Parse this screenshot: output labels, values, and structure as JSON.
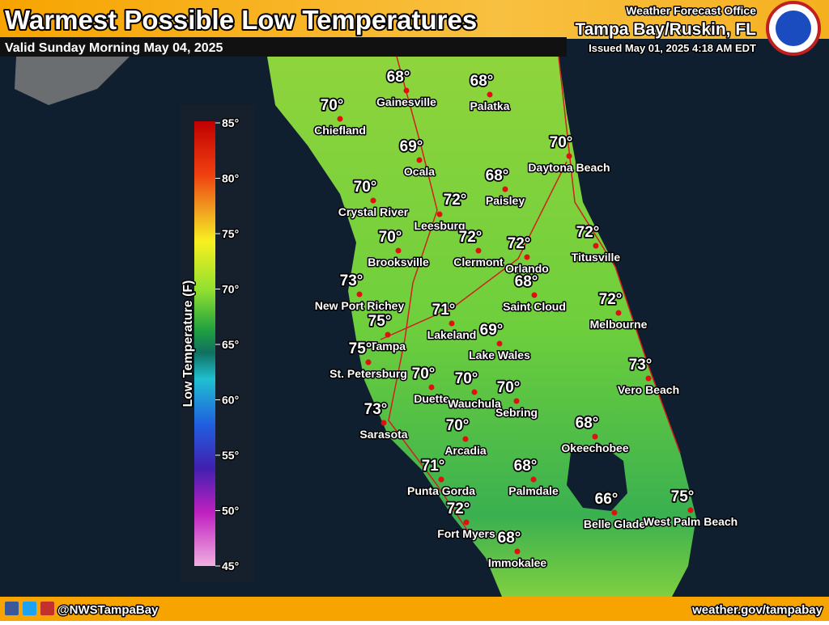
{
  "header": {
    "title": "Warmest Possible Low Temperatures",
    "valid": "Valid Sunday Morning May 04, 2025",
    "office": "Weather Forecast Office",
    "location": "Tampa Bay/Ruskin, FL",
    "issued": "Issued May 01, 2025 4:18 AM EDT"
  },
  "legend": {
    "title": "Low Temperature (F)",
    "ticks": [
      "85°",
      "80°",
      "75°",
      "70°",
      "65°",
      "60°",
      "55°",
      "50°",
      "45°"
    ]
  },
  "cities": [
    {
      "name": "Gainesville",
      "temp": "68°"
    },
    {
      "name": "Palatka",
      "temp": "68°"
    },
    {
      "name": "Chiefland",
      "temp": "70°"
    },
    {
      "name": "Ocala",
      "temp": "69°"
    },
    {
      "name": "Daytona Beach",
      "temp": "70°"
    },
    {
      "name": "Paisley",
      "temp": "68°"
    },
    {
      "name": "Crystal River",
      "temp": "70°"
    },
    {
      "name": "Leesburg",
      "temp": "72°"
    },
    {
      "name": "Clermont",
      "temp": "72°"
    },
    {
      "name": "Orlando",
      "temp": "72°"
    },
    {
      "name": "Titusville",
      "temp": "72°"
    },
    {
      "name": "Brooksville",
      "temp": "70°"
    },
    {
      "name": "New Port Richey",
      "temp": "73°"
    },
    {
      "name": "Saint Cloud",
      "temp": "68°"
    },
    {
      "name": "Melbourne",
      "temp": "72°"
    },
    {
      "name": "Lakeland",
      "temp": "71°"
    },
    {
      "name": "Tampa",
      "temp": "75°"
    },
    {
      "name": "Lake Wales",
      "temp": "69°"
    },
    {
      "name": "St. Petersburg",
      "temp": "75°"
    },
    {
      "name": "Vero Beach",
      "temp": "73°"
    },
    {
      "name": "Duette",
      "temp": "70°"
    },
    {
      "name": "Wauchula",
      "temp": "70°"
    },
    {
      "name": "Sebring",
      "temp": "70°"
    },
    {
      "name": "Sarasota",
      "temp": "73°"
    },
    {
      "name": "Okeechobee",
      "temp": "68°"
    },
    {
      "name": "Arcadia",
      "temp": "70°"
    },
    {
      "name": "Palmdale",
      "temp": "68°"
    },
    {
      "name": "Punta Gorda",
      "temp": "71°"
    },
    {
      "name": "Belle Glade",
      "temp": "66°"
    },
    {
      "name": "West Palm Beach",
      "temp": "75°"
    },
    {
      "name": "Fort Myers",
      "temp": "72°"
    },
    {
      "name": "Immokalee",
      "temp": "68°"
    }
  ],
  "footer": {
    "handle": "@NWSTampaBay",
    "url": "weather.gov/tampabay"
  }
}
